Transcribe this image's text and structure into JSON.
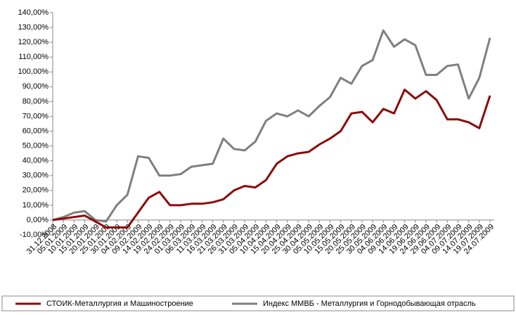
{
  "chart_data": {
    "type": "line",
    "categories": [
      "31.12.2008",
      "05.01.2009",
      "10.01.2009",
      "15.01.2009",
      "20.01.2009",
      "25.01.2009",
      "30.01.2009",
      "04.02.2009",
      "09.02.2009",
      "14.02.2009",
      "19.02.2009",
      "24.02.2009",
      "01.03.2009",
      "06.03.2009",
      "11.03.2009",
      "16.03.2009",
      "21.03.2009",
      "26.03.2009",
      "31.03.2009",
      "05.04.2009",
      "10.04.2009",
      "15.04.2009",
      "20.04.2009",
      "25.04.2009",
      "30.04.2009",
      "05.05.2009",
      "10.05.2009",
      "15.05.2009",
      "20.05.2009",
      "25.05.2009",
      "30.05.2009",
      "04.06.2009",
      "09.06.2009",
      "14.06.2009",
      "19.06.2009",
      "24.06.2009",
      "29.06.2009",
      "04.07.2009",
      "09.07.2009",
      "14.07.2009",
      "19.07.2009",
      "24.07.2009"
    ],
    "series": [
      {
        "name": "СТОИК-Металлургия и Машиностроение",
        "color": "#8b0a0a",
        "values": [
          0,
          1,
          2,
          3,
          -1,
          -5,
          -5,
          -5,
          5,
          15,
          19,
          10,
          10,
          11,
          11,
          12,
          14,
          20,
          23,
          22,
          27,
          38,
          43,
          45,
          46,
          51,
          55,
          60,
          72,
          73,
          66,
          75,
          72,
          88,
          82,
          87,
          81,
          68,
          68,
          66,
          62,
          84
        ]
      },
      {
        "name": "Индекс ММВБ - Металлургия и Горнодобывающая отрасль",
        "color": "#7f7f7f",
        "values": [
          0,
          2,
          5,
          6,
          0,
          -1,
          10,
          17,
          43,
          42,
          30,
          30,
          31,
          36,
          37,
          38,
          55,
          48,
          47,
          53,
          67,
          72,
          70,
          74,
          70,
          77,
          83,
          96,
          92,
          104,
          108,
          128,
          117,
          122,
          118,
          98,
          98,
          104,
          105,
          82,
          96,
          123
        ]
      }
    ],
    "ylim": [
      -10,
      140
    ],
    "yticks": [
      {
        "value": -10,
        "label": "-10,00%"
      },
      {
        "value": 0,
        "label": "0,00%"
      },
      {
        "value": 10,
        "label": "10,00%"
      },
      {
        "value": 20,
        "label": "20,00%"
      },
      {
        "value": 30,
        "label": "30,00%"
      },
      {
        "value": 40,
        "label": "40,00%"
      },
      {
        "value": 50,
        "label": "50,00%"
      },
      {
        "value": 60,
        "label": "60,00%"
      },
      {
        "value": 70,
        "label": "70,00%"
      },
      {
        "value": 80,
        "label": "80,00%"
      },
      {
        "value": 90,
        "label": "90,00%"
      },
      {
        "value": 100,
        "label": "100,00%"
      },
      {
        "value": 110,
        "label": "110,00%"
      },
      {
        "value": 120,
        "label": "120,00%"
      },
      {
        "value": 130,
        "label": "130,00%"
      },
      {
        "value": 140,
        "label": "140,00%"
      }
    ],
    "grid": false,
    "legend": "bottom"
  }
}
